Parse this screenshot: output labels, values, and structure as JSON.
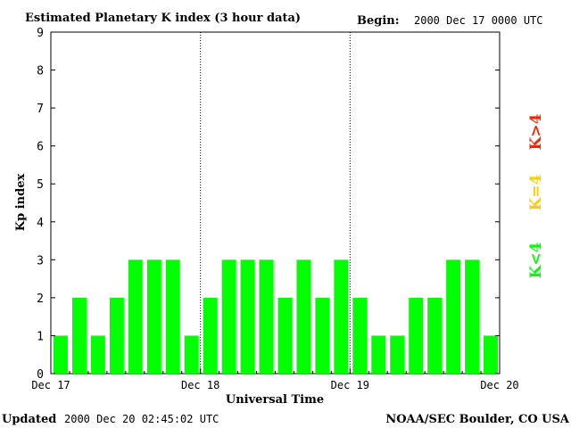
{
  "header": {
    "title": "Estimated Planetary K index (3 hour data)",
    "begin_label": "Begin:",
    "begin_value": "2000 Dec 17 0000 UTC"
  },
  "footer": {
    "updated_label": "Updated",
    "updated_value": "2000 Dec 20 02:45:02 UTC",
    "source": "NOAA/SEC Boulder, CO USA"
  },
  "legend": {
    "low": "K<4",
    "eq": "K=4",
    "high": "K>4"
  },
  "colors": {
    "low": "#00ff00",
    "eq": "#ffcc00",
    "high": "#ff2200",
    "axis": "#000000"
  },
  "chart_data": {
    "type": "bar",
    "xlabel": "Universal Time",
    "ylabel": "Kp index",
    "ylim": [
      0,
      9
    ],
    "yticks": [
      "0",
      "1",
      "2",
      "3",
      "4",
      "5",
      "6",
      "7",
      "8",
      "9"
    ],
    "x_tick_labels": [
      "Dec 17",
      "Dec 18",
      "Dec 19",
      "Dec 20"
    ],
    "day_separators": true,
    "grid": false,
    "values": [
      1,
      2,
      1,
      2,
      3,
      3,
      3,
      1,
      2,
      3,
      3,
      3,
      2,
      3,
      2,
      3,
      2,
      1,
      1,
      2,
      2,
      3,
      3,
      1
    ]
  }
}
